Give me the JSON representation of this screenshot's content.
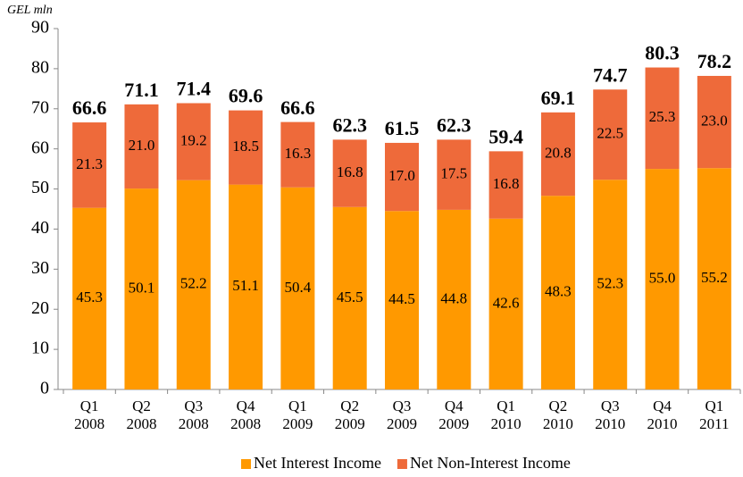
{
  "chart_data": {
    "type": "stacked_bar",
    "unit_label": "GEL mln",
    "categories": [
      [
        "Q1",
        "2008"
      ],
      [
        "Q2",
        "2008"
      ],
      [
        "Q3",
        "2008"
      ],
      [
        "Q4",
        "2008"
      ],
      [
        "Q1",
        "2009"
      ],
      [
        "Q2",
        "2009"
      ],
      [
        "Q3",
        "2009"
      ],
      [
        "Q4",
        "2009"
      ],
      [
        "Q1",
        "2010"
      ],
      [
        "Q2",
        "2010"
      ],
      [
        "Q3",
        "2010"
      ],
      [
        "Q4",
        "2010"
      ],
      [
        "Q1",
        "2011"
      ]
    ],
    "series": [
      {
        "name": "Net Interest Income",
        "color": "#ff9900",
        "values": [
          45.3,
          50.1,
          52.2,
          51.1,
          50.4,
          45.5,
          44.5,
          44.8,
          42.6,
          48.3,
          52.3,
          55.0,
          55.2
        ],
        "value_labels": [
          "45.3",
          "50.1",
          "52.2",
          "51.1",
          "50.4",
          "45.5",
          "44.5",
          "44.8",
          "42.6",
          "48.3",
          "52.3",
          "55.0",
          "55.2"
        ]
      },
      {
        "name": "Net Non-Interest Income",
        "color": "#ee6a3a",
        "values": [
          21.3,
          21.0,
          19.2,
          18.5,
          16.3,
          16.8,
          17.0,
          17.5,
          16.8,
          20.8,
          22.5,
          25.3,
          23.0
        ],
        "value_labels": [
          "21.3",
          "21.0",
          "19.2",
          "18.5",
          "16.3",
          "16.8",
          "17.0",
          "17.5",
          "16.8",
          "20.8",
          "22.5",
          "25.3",
          "23.0"
        ]
      }
    ],
    "totals": [
      66.6,
      71.1,
      71.4,
      69.6,
      66.6,
      62.3,
      61.5,
      62.3,
      59.4,
      69.1,
      74.7,
      80.3,
      78.2
    ],
    "ylim": [
      0,
      90
    ],
    "yticks": [
      0,
      10,
      20,
      30,
      40,
      50,
      60,
      70,
      80,
      90
    ],
    "legend": "bottom"
  }
}
